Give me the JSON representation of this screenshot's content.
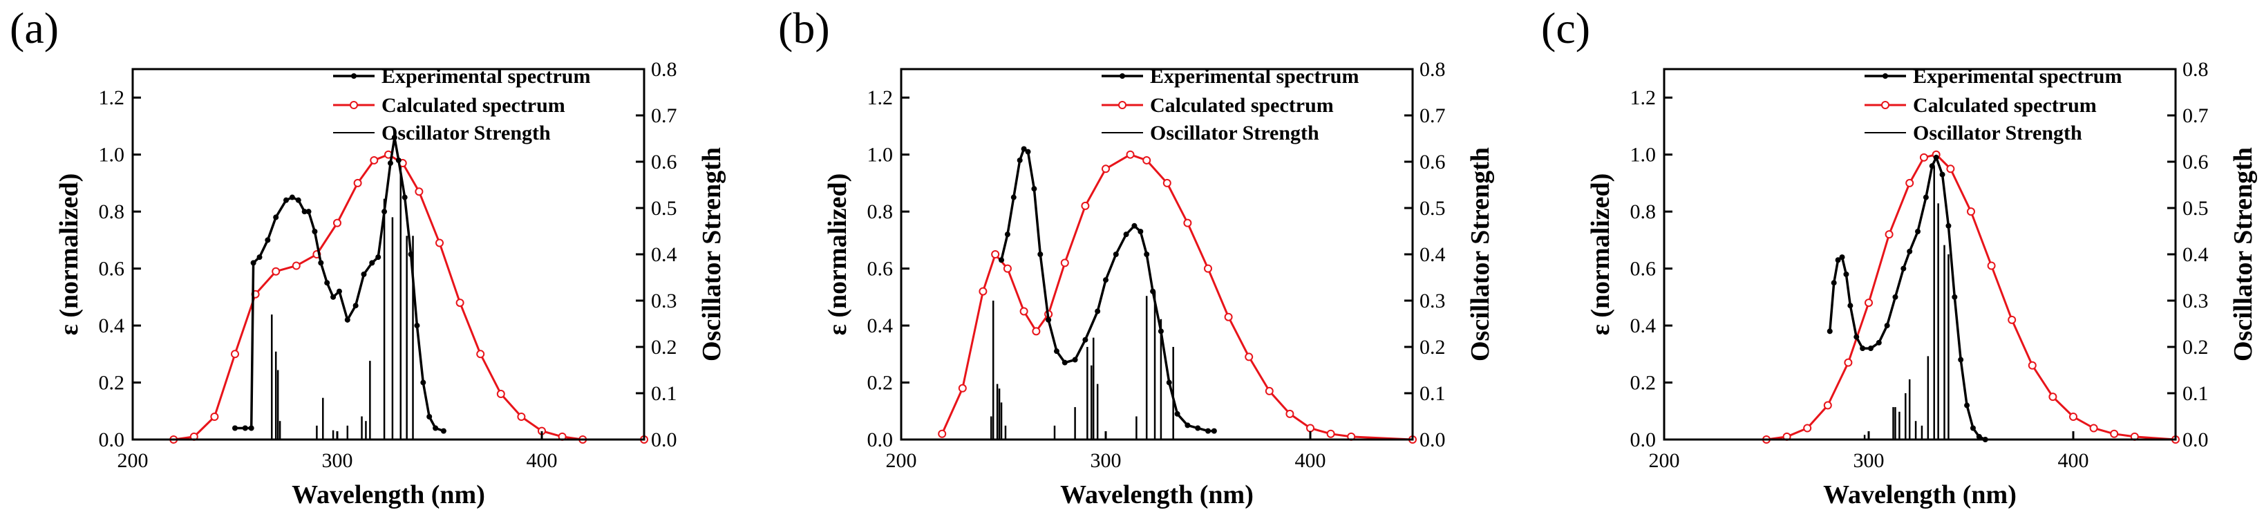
{
  "chart_data": [
    {
      "type": "line",
      "panel_label": "(a)",
      "xlabel": "Wavelength (nm)",
      "ylabel": "ε (normalized)",
      "y2label": "Oscillator Strength",
      "xlim": [
        200,
        450
      ],
      "ylim": [
        0,
        1.3
      ],
      "y2lim": [
        0,
        0.8
      ],
      "x_ticks": [
        200,
        300,
        400
      ],
      "y_ticks": [
        0.0,
        0.2,
        0.4,
        0.6,
        0.8,
        1.0,
        1.2
      ],
      "y2_ticks": [
        0.0,
        0.1,
        0.2,
        0.3,
        0.4,
        0.5,
        0.6,
        0.7,
        0.8
      ],
      "legend": [
        "Experimental spectrum",
        "Calculated spectrum",
        "Oscillator Strength"
      ],
      "series": [
        {
          "name": "Experimental spectrum",
          "color": "#000000",
          "points": [
            [
              250,
              0.04
            ],
            [
              255,
              0.04
            ],
            [
              258,
              0.04
            ],
            [
              259,
              0.62
            ],
            [
              262,
              0.64
            ],
            [
              266,
              0.7
            ],
            [
              270,
              0.78
            ],
            [
              275,
              0.84
            ],
            [
              278,
              0.85
            ],
            [
              281,
              0.84
            ],
            [
              284,
              0.8
            ],
            [
              286,
              0.8
            ],
            [
              289,
              0.73
            ],
            [
              292,
              0.62
            ],
            [
              295,
              0.55
            ],
            [
              298,
              0.5
            ],
            [
              301,
              0.52
            ],
            [
              305,
              0.42
            ],
            [
              309,
              0.47
            ],
            [
              313,
              0.58
            ],
            [
              317,
              0.62
            ],
            [
              320,
              0.64
            ],
            [
              323,
              0.8
            ],
            [
              326,
              0.97
            ],
            [
              328,
              1.06
            ],
            [
              330,
              0.98
            ],
            [
              333,
              0.85
            ],
            [
              336,
              0.65
            ],
            [
              339,
              0.4
            ],
            [
              342,
              0.2
            ],
            [
              345,
              0.08
            ],
            [
              348,
              0.04
            ],
            [
              352,
              0.03
            ]
          ]
        },
        {
          "name": "Calculated spectrum",
          "color": "#e8141a",
          "points": [
            [
              220,
              0.0
            ],
            [
              230,
              0.01
            ],
            [
              240,
              0.08
            ],
            [
              250,
              0.3
            ],
            [
              260,
              0.51
            ],
            [
              270,
              0.59
            ],
            [
              280,
              0.61
            ],
            [
              290,
              0.65
            ],
            [
              300,
              0.76
            ],
            [
              310,
              0.9
            ],
            [
              318,
              0.98
            ],
            [
              325,
              1.0
            ],
            [
              332,
              0.97
            ],
            [
              340,
              0.87
            ],
            [
              350,
              0.69
            ],
            [
              360,
              0.48
            ],
            [
              370,
              0.3
            ],
            [
              380,
              0.16
            ],
            [
              390,
              0.08
            ],
            [
              400,
              0.03
            ],
            [
              410,
              0.01
            ],
            [
              420,
              0.0
            ],
            [
              450,
              0.0
            ]
          ]
        }
      ],
      "oscillator_strength": [
        [
          268,
          0.27
        ],
        [
          270,
          0.19
        ],
        [
          271,
          0.15
        ],
        [
          272,
          0.04
        ],
        [
          290,
          0.03
        ],
        [
          293,
          0.09
        ],
        [
          298,
          0.02
        ],
        [
          305,
          0.03
        ],
        [
          312,
          0.05
        ],
        [
          314,
          0.04
        ],
        [
          316,
          0.17
        ],
        [
          323,
          0.52
        ],
        [
          327,
          0.48
        ],
        [
          331,
          0.6
        ],
        [
          334,
          0.44
        ],
        [
          337,
          0.44
        ]
      ]
    },
    {
      "type": "line",
      "panel_label": "(b)",
      "xlabel": "Wavelength (nm)",
      "ylabel": "ε (normalized)",
      "y2label": "Oscillator Strength",
      "xlim": [
        200,
        450
      ],
      "ylim": [
        0,
        1.3
      ],
      "y2lim": [
        0,
        0.8
      ],
      "x_ticks": [
        200,
        300,
        400
      ],
      "y_ticks": [
        0.0,
        0.2,
        0.4,
        0.6,
        0.8,
        1.0,
        1.2
      ],
      "y2_ticks": [
        0.0,
        0.1,
        0.2,
        0.3,
        0.4,
        0.5,
        0.6,
        0.7,
        0.8
      ],
      "legend": [
        "Experimental spectrum",
        "Calculated spectrum",
        "Oscillator Strength"
      ],
      "series": [
        {
          "name": "Experimental spectrum",
          "color": "#000000",
          "points": [
            [
              249,
              0.63
            ],
            [
              252,
              0.72
            ],
            [
              255,
              0.85
            ],
            [
              258,
              0.98
            ],
            [
              260,
              1.02
            ],
            [
              262,
              1.01
            ],
            [
              265,
              0.88
            ],
            [
              268,
              0.65
            ],
            [
              272,
              0.42
            ],
            [
              276,
              0.31
            ],
            [
              280,
              0.27
            ],
            [
              285,
              0.28
            ],
            [
              290,
              0.35
            ],
            [
              296,
              0.45
            ],
            [
              300,
              0.56
            ],
            [
              305,
              0.65
            ],
            [
              310,
              0.72
            ],
            [
              314,
              0.75
            ],
            [
              317,
              0.73
            ],
            [
              320,
              0.65
            ],
            [
              323,
              0.52
            ],
            [
              327,
              0.38
            ],
            [
              331,
              0.2
            ],
            [
              335,
              0.09
            ],
            [
              340,
              0.05
            ],
            [
              345,
              0.04
            ],
            [
              350,
              0.03
            ],
            [
              353,
              0.03
            ]
          ]
        },
        {
          "name": "Calculated spectrum",
          "color": "#e8141a",
          "points": [
            [
              220,
              0.02
            ],
            [
              230,
              0.18
            ],
            [
              240,
              0.52
            ],
            [
              246,
              0.65
            ],
            [
              252,
              0.6
            ],
            [
              260,
              0.45
            ],
            [
              266,
              0.38
            ],
            [
              272,
              0.44
            ],
            [
              280,
              0.62
            ],
            [
              290,
              0.82
            ],
            [
              300,
              0.95
            ],
            [
              312,
              1.0
            ],
            [
              320,
              0.98
            ],
            [
              330,
              0.9
            ],
            [
              340,
              0.76
            ],
            [
              350,
              0.6
            ],
            [
              360,
              0.43
            ],
            [
              370,
              0.29
            ],
            [
              380,
              0.17
            ],
            [
              390,
              0.09
            ],
            [
              400,
              0.04
            ],
            [
              410,
              0.02
            ],
            [
              420,
              0.01
            ],
            [
              450,
              0.0
            ]
          ]
        }
      ],
      "oscillator_strength": [
        [
          244,
          0.05
        ],
        [
          245,
          0.3
        ],
        [
          247,
          0.12
        ],
        [
          248,
          0.11
        ],
        [
          249,
          0.08
        ],
        [
          251,
          0.03
        ],
        [
          275,
          0.03
        ],
        [
          285,
          0.07
        ],
        [
          291,
          0.2
        ],
        [
          293,
          0.16
        ],
        [
          294,
          0.22
        ],
        [
          296,
          0.12
        ],
        [
          315,
          0.05
        ],
        [
          320,
          0.31
        ],
        [
          324,
          0.32
        ],
        [
          327,
          0.26
        ],
        [
          333,
          0.2
        ]
      ]
    },
    {
      "type": "line",
      "panel_label": "(c)",
      "xlabel": "Wavelength (nm)",
      "ylabel": "ε (normalized)",
      "y2label": "Oscillator Strength",
      "xlim": [
        200,
        450
      ],
      "ylim": [
        0,
        1.3
      ],
      "y2lim": [
        0,
        0.8
      ],
      "x_ticks": [
        200,
        300,
        400
      ],
      "y_ticks": [
        0.0,
        0.2,
        0.4,
        0.6,
        0.8,
        1.0,
        1.2
      ],
      "y2_ticks": [
        0.0,
        0.1,
        0.2,
        0.3,
        0.4,
        0.5,
        0.6,
        0.7,
        0.8
      ],
      "legend": [
        "Experimental spectrum",
        "Calculated spectrum",
        "Oscillator Strength"
      ],
      "series": [
        {
          "name": "Experimental spectrum",
          "color": "#000000",
          "points": [
            [
              281,
              0.38
            ],
            [
              283,
              0.55
            ],
            [
              285,
              0.63
            ],
            [
              287,
              0.64
            ],
            [
              289,
              0.58
            ],
            [
              291,
              0.47
            ],
            [
              294,
              0.36
            ],
            [
              297,
              0.32
            ],
            [
              301,
              0.32
            ],
            [
              305,
              0.34
            ],
            [
              309,
              0.4
            ],
            [
              313,
              0.5
            ],
            [
              317,
              0.6
            ],
            [
              320,
              0.66
            ],
            [
              324,
              0.73
            ],
            [
              328,
              0.85
            ],
            [
              331,
              0.96
            ],
            [
              333,
              0.99
            ],
            [
              336,
              0.93
            ],
            [
              339,
              0.75
            ],
            [
              342,
              0.5
            ],
            [
              345,
              0.28
            ],
            [
              348,
              0.12
            ],
            [
              351,
              0.04
            ],
            [
              354,
              0.01
            ],
            [
              357,
              0.0
            ]
          ]
        },
        {
          "name": "Calculated spectrum",
          "color": "#e8141a",
          "points": [
            [
              250,
              0.0
            ],
            [
              260,
              0.01
            ],
            [
              270,
              0.04
            ],
            [
              280,
              0.12
            ],
            [
              290,
              0.27
            ],
            [
              300,
              0.48
            ],
            [
              310,
              0.72
            ],
            [
              320,
              0.9
            ],
            [
              327,
              0.99
            ],
            [
              333,
              1.0
            ],
            [
              340,
              0.95
            ],
            [
              350,
              0.8
            ],
            [
              360,
              0.61
            ],
            [
              370,
              0.42
            ],
            [
              380,
              0.26
            ],
            [
              390,
              0.15
            ],
            [
              400,
              0.08
            ],
            [
              410,
              0.04
            ],
            [
              420,
              0.02
            ],
            [
              430,
              0.01
            ],
            [
              450,
              0.0
            ]
          ]
        }
      ],
      "oscillator_strength": [
        [
          298,
          0.01
        ],
        [
          312,
          0.07
        ],
        [
          313,
          0.07
        ],
        [
          315,
          0.06
        ],
        [
          318,
          0.1
        ],
        [
          320,
          0.13
        ],
        [
          323,
          0.04
        ],
        [
          326,
          0.03
        ],
        [
          329,
          0.18
        ],
        [
          332,
          0.59
        ],
        [
          334,
          0.51
        ],
        [
          337,
          0.42
        ],
        [
          339,
          0.4
        ]
      ]
    }
  ]
}
